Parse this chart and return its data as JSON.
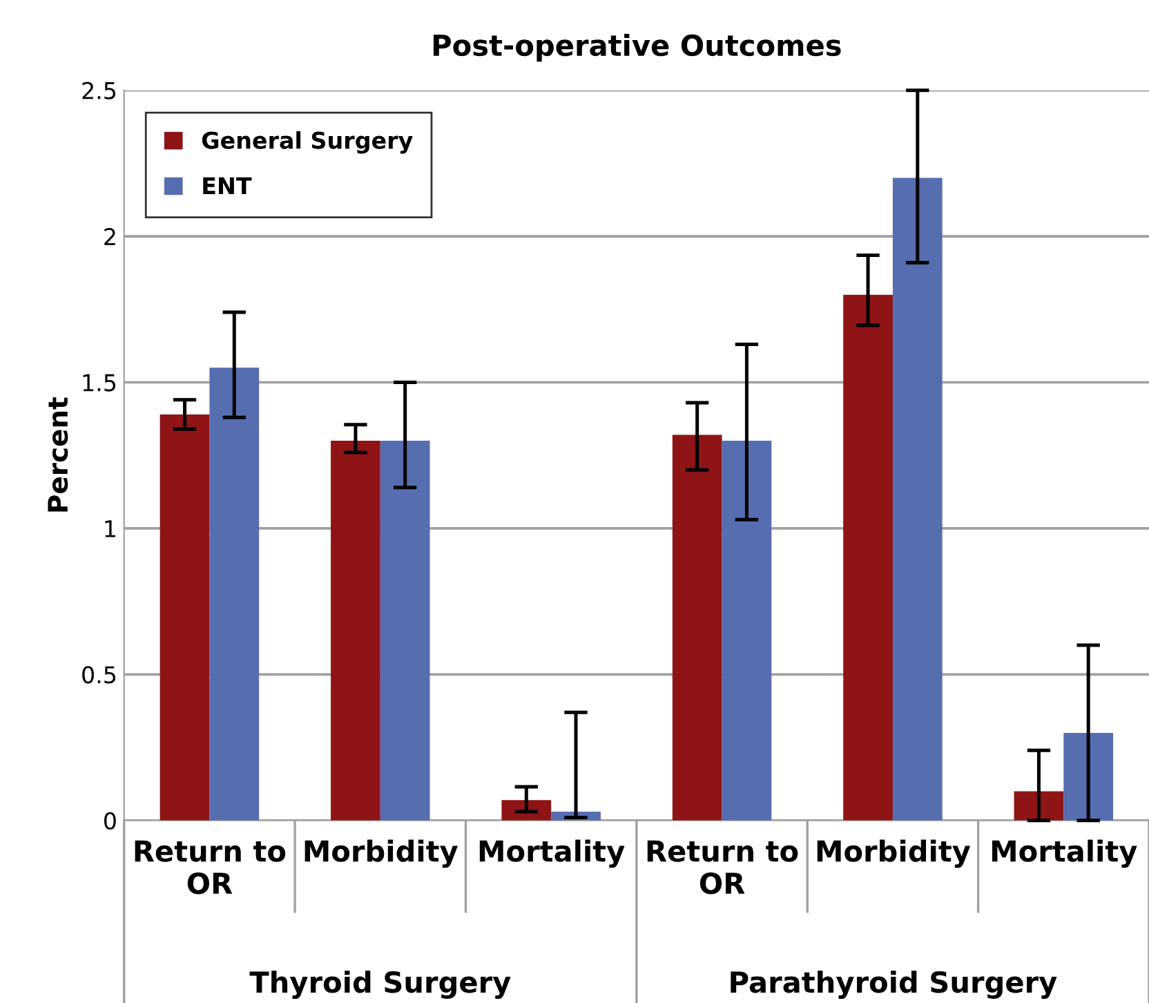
{
  "chart_data": {
    "type": "bar",
    "title": "Post-operative Outcomes",
    "ylabel": "Percent",
    "categories": [
      "Return to\nOR",
      "Morbidity",
      "Mortality",
      "Return to\nOR",
      "Morbidity",
      "Mortality"
    ],
    "annotations": [
      "Thyroid Surgery",
      "Parathyroid Surgery"
    ],
    "series": [
      {
        "name": "General Surgery",
        "color": "#8e1416",
        "values": [
          1.39,
          1.3,
          0.07,
          1.32,
          1.8,
          0.1
        ],
        "errors": [
          [
            1.34,
            1.44
          ],
          [
            1.26,
            1.355
          ],
          [
            0.03,
            0.115
          ],
          [
            1.2,
            1.43
          ],
          [
            1.695,
            1.935
          ],
          [
            0.0,
            0.24
          ]
        ]
      },
      {
        "name": "ENT",
        "color": "#566db0",
        "values": [
          1.55,
          1.3,
          0.03,
          1.3,
          2.2,
          0.3
        ],
        "errors": [
          [
            1.38,
            1.74
          ],
          [
            1.14,
            1.5
          ],
          [
            0.01,
            0.37
          ],
          [
            1.03,
            1.63
          ],
          [
            1.91,
            2.5
          ],
          [
            0.0,
            0.6
          ]
        ]
      }
    ],
    "ylim": [
      0,
      2.5
    ],
    "yticks": [
      0,
      0.5,
      1,
      1.5,
      2,
      2.5
    ],
    "grid": "y",
    "legend": "top left"
  }
}
